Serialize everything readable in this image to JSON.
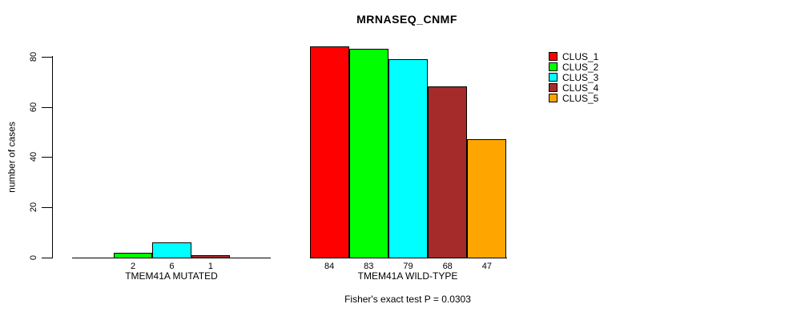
{
  "chart_data": {
    "type": "bar",
    "title": "MRNASEQ_CNMF",
    "ylabel": "number of cases",
    "yticks": [
      0,
      20,
      40,
      60,
      80
    ],
    "ylim": [
      0,
      84
    ],
    "grid": false,
    "legend_position": "top-right",
    "background": "#FFFFFF",
    "axis_color": "#000000",
    "clusters": [
      {
        "name": "CLUS_1",
        "color": "#FF0000"
      },
      {
        "name": "CLUS_2",
        "color": "#00FF00"
      },
      {
        "name": "CLUS_3",
        "color": "#00FFFF"
      },
      {
        "name": "CLUS_4",
        "color": "#A52A2A"
      },
      {
        "name": "CLUS_5",
        "color": "#FFA500"
      }
    ],
    "groups": [
      {
        "label": "TMEM41A MUTATED",
        "values": [
          0,
          2,
          6,
          1,
          0
        ]
      },
      {
        "label": "TMEM41A WILD-TYPE",
        "values": [
          84,
          83,
          79,
          68,
          47
        ]
      }
    ],
    "annotation": "Fisher's exact test P = 0.0303"
  }
}
